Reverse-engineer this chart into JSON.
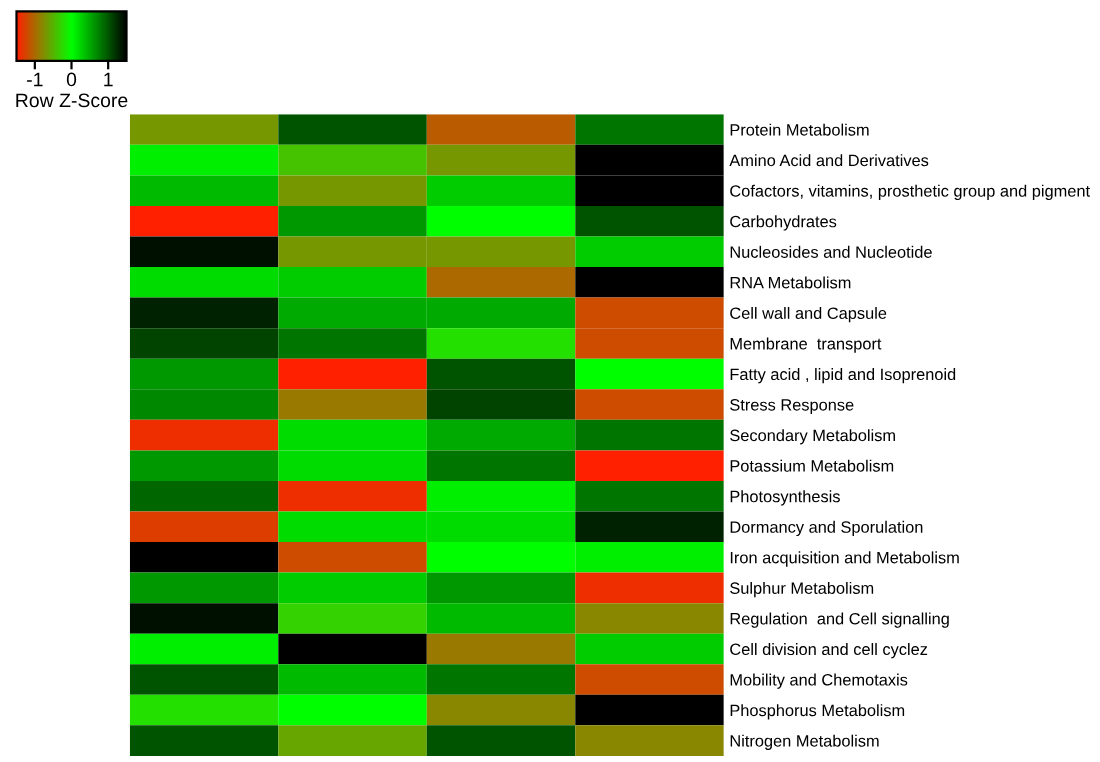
{
  "chart_data": {
    "type": "heatmap",
    "clabel": "Row Z-Score",
    "categories": [
      null,
      null,
      null,
      null
    ],
    "y_categories": [
      "Protein Metabolism",
      "Amino Acid and Derivatives",
      "Cofactors, vitamins, prosthetic group and pigment",
      "Carbohydrates",
      "Nucleosides and Nucleotide",
      "RNA Metabolism",
      "Cell wall and Capsule",
      "Membrane  transport",
      "Fatty acid , lipid and Isoprenoid",
      "Stress Response",
      "Secondary Metabolism",
      "Potassium Metabolism",
      "Photosynthesis",
      "Dormancy and Sporulation",
      "Iron acquisition and Metabolism",
      "Sulphur Metabolism",
      "Regulation  and Cell signalling",
      "Cell division and cell cyclez",
      "Mobility and Chemotaxis",
      "Phosphorus Metabolism",
      "Nitrogen Metabolism"
    ],
    "cells": [
      [
        -0.7,
        1.0,
        -1.1,
        0.8
      ],
      [
        0.1,
        -0.4,
        -0.7,
        1.5
      ],
      [
        0.4,
        -0.7,
        0.3,
        1.5
      ],
      [
        -1.5,
        0.6,
        0.0,
        1.0
      ],
      [
        1.4,
        -0.7,
        -0.7,
        0.3
      ],
      [
        0.2,
        0.3,
        -1.0,
        1.5
      ],
      [
        1.3,
        0.5,
        0.5,
        -1.2
      ],
      [
        1.1,
        0.8,
        -0.2,
        -1.2
      ],
      [
        0.6,
        -1.5,
        1.0,
        0.0
      ],
      [
        0.7,
        -0.9,
        1.1,
        -1.2
      ],
      [
        -1.4,
        0.2,
        0.5,
        0.8
      ],
      [
        0.6,
        0.2,
        0.8,
        -1.5
      ],
      [
        0.9,
        -1.4,
        0.1,
        0.8
      ],
      [
        -1.3,
        0.2,
        0.2,
        1.3
      ],
      [
        1.5,
        -1.2,
        0.0,
        0.1
      ],
      [
        0.6,
        0.3,
        0.6,
        -1.4
      ],
      [
        1.4,
        -0.3,
        0.4,
        -0.8
      ],
      [
        0.1,
        1.5,
        -0.9,
        0.3
      ],
      [
        1.0,
        0.4,
        0.8,
        -1.2
      ],
      [
        -0.2,
        0.0,
        -0.8,
        1.5
      ],
      [
        1.0,
        -0.6,
        1.0,
        -0.8
      ]
    ],
    "clim": [
      -1.5,
      1.5
    ],
    "cticks": [
      -1,
      0,
      1
    ]
  }
}
